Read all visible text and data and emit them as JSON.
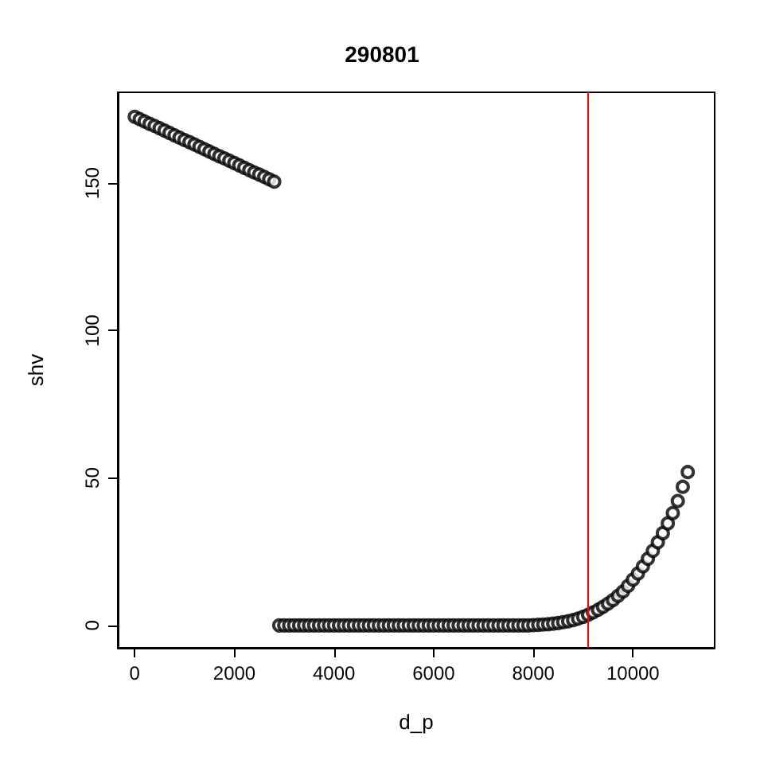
{
  "chart_data": {
    "type": "scatter",
    "title": "290801",
    "xlabel": "d_p",
    "ylabel": "shv",
    "xlim": [
      -340,
      11640
    ],
    "ylim": [
      -7.6,
      180.8
    ],
    "xticks": [
      0,
      2000,
      4000,
      6000,
      8000,
      10000
    ],
    "yticks": [
      0,
      50,
      100,
      150
    ],
    "grid": false,
    "marker": "circle",
    "series": [
      {
        "color": "#000000",
        "x": [
          0,
          100,
          200,
          300,
          400,
          500,
          600,
          700,
          800,
          900,
          1000,
          1100,
          1200,
          1300,
          1400,
          1500,
          1600,
          1700,
          1800,
          1900,
          2000,
          2100,
          2200,
          2300,
          2400,
          2500,
          2600,
          2700,
          2800,
          2900,
          3000,
          3100,
          3200,
          3300,
          3400,
          3500,
          3600,
          3700,
          3800,
          3900,
          4000,
          4100,
          4200,
          4300,
          4400,
          4500,
          4600,
          4700,
          4800,
          4900,
          5000,
          5100,
          5200,
          5300,
          5400,
          5500,
          5600,
          5700,
          5800,
          5900,
          6000,
          6100,
          6200,
          6300,
          6400,
          6500,
          6600,
          6700,
          6800,
          6900,
          7000,
          7100,
          7200,
          7300,
          7400,
          7500,
          7600,
          7700,
          7800,
          7900,
          8000,
          8100,
          8200,
          8300,
          8400,
          8500,
          8600,
          8700,
          8800,
          8900,
          9000,
          9100,
          9200,
          9300,
          9400,
          9500,
          9600,
          9700,
          9800,
          9900,
          10000,
          10100,
          10200,
          10300,
          10400,
          10500,
          10600,
          10700,
          10800,
          10900,
          11000,
          11100
        ],
        "values": [
          172.5,
          171.7,
          170.9,
          170.1,
          169.4,
          168.6,
          167.8,
          167.0,
          166.2,
          165.4,
          164.6,
          163.9,
          163.1,
          162.3,
          161.5,
          160.7,
          159.9,
          159.1,
          158.4,
          157.6,
          156.8,
          156.0,
          155.2,
          154.4,
          153.6,
          152.9,
          152.1,
          151.3,
          150.5,
          0,
          0,
          0,
          0,
          0,
          0,
          0,
          0,
          0,
          0,
          0,
          0,
          0,
          0,
          0,
          0,
          0,
          0,
          0,
          0,
          0,
          0,
          0,
          0,
          0,
          0,
          0,
          0,
          0,
          0,
          0,
          0,
          0,
          0,
          0,
          0,
          0,
          0,
          0,
          0,
          0,
          0,
          0,
          0,
          0,
          0,
          0,
          0,
          0,
          0,
          0,
          0.1,
          0.2,
          0.3,
          0.4,
          0.6,
          0.8,
          1.1,
          1.4,
          1.8,
          2.3,
          2.9,
          3.6,
          4.4,
          5.3,
          6.3,
          7.4,
          8.6,
          10.0,
          11.5,
          13.4,
          15.5,
          17.6,
          20.0,
          22.6,
          25.3,
          28.2,
          31.3,
          34.6,
          38.1,
          42.2,
          47.0,
          52.0
        ]
      }
    ],
    "ref_lines": [
      {
        "axis": "x",
        "value": 9100,
        "color": "#ff0000"
      }
    ]
  }
}
